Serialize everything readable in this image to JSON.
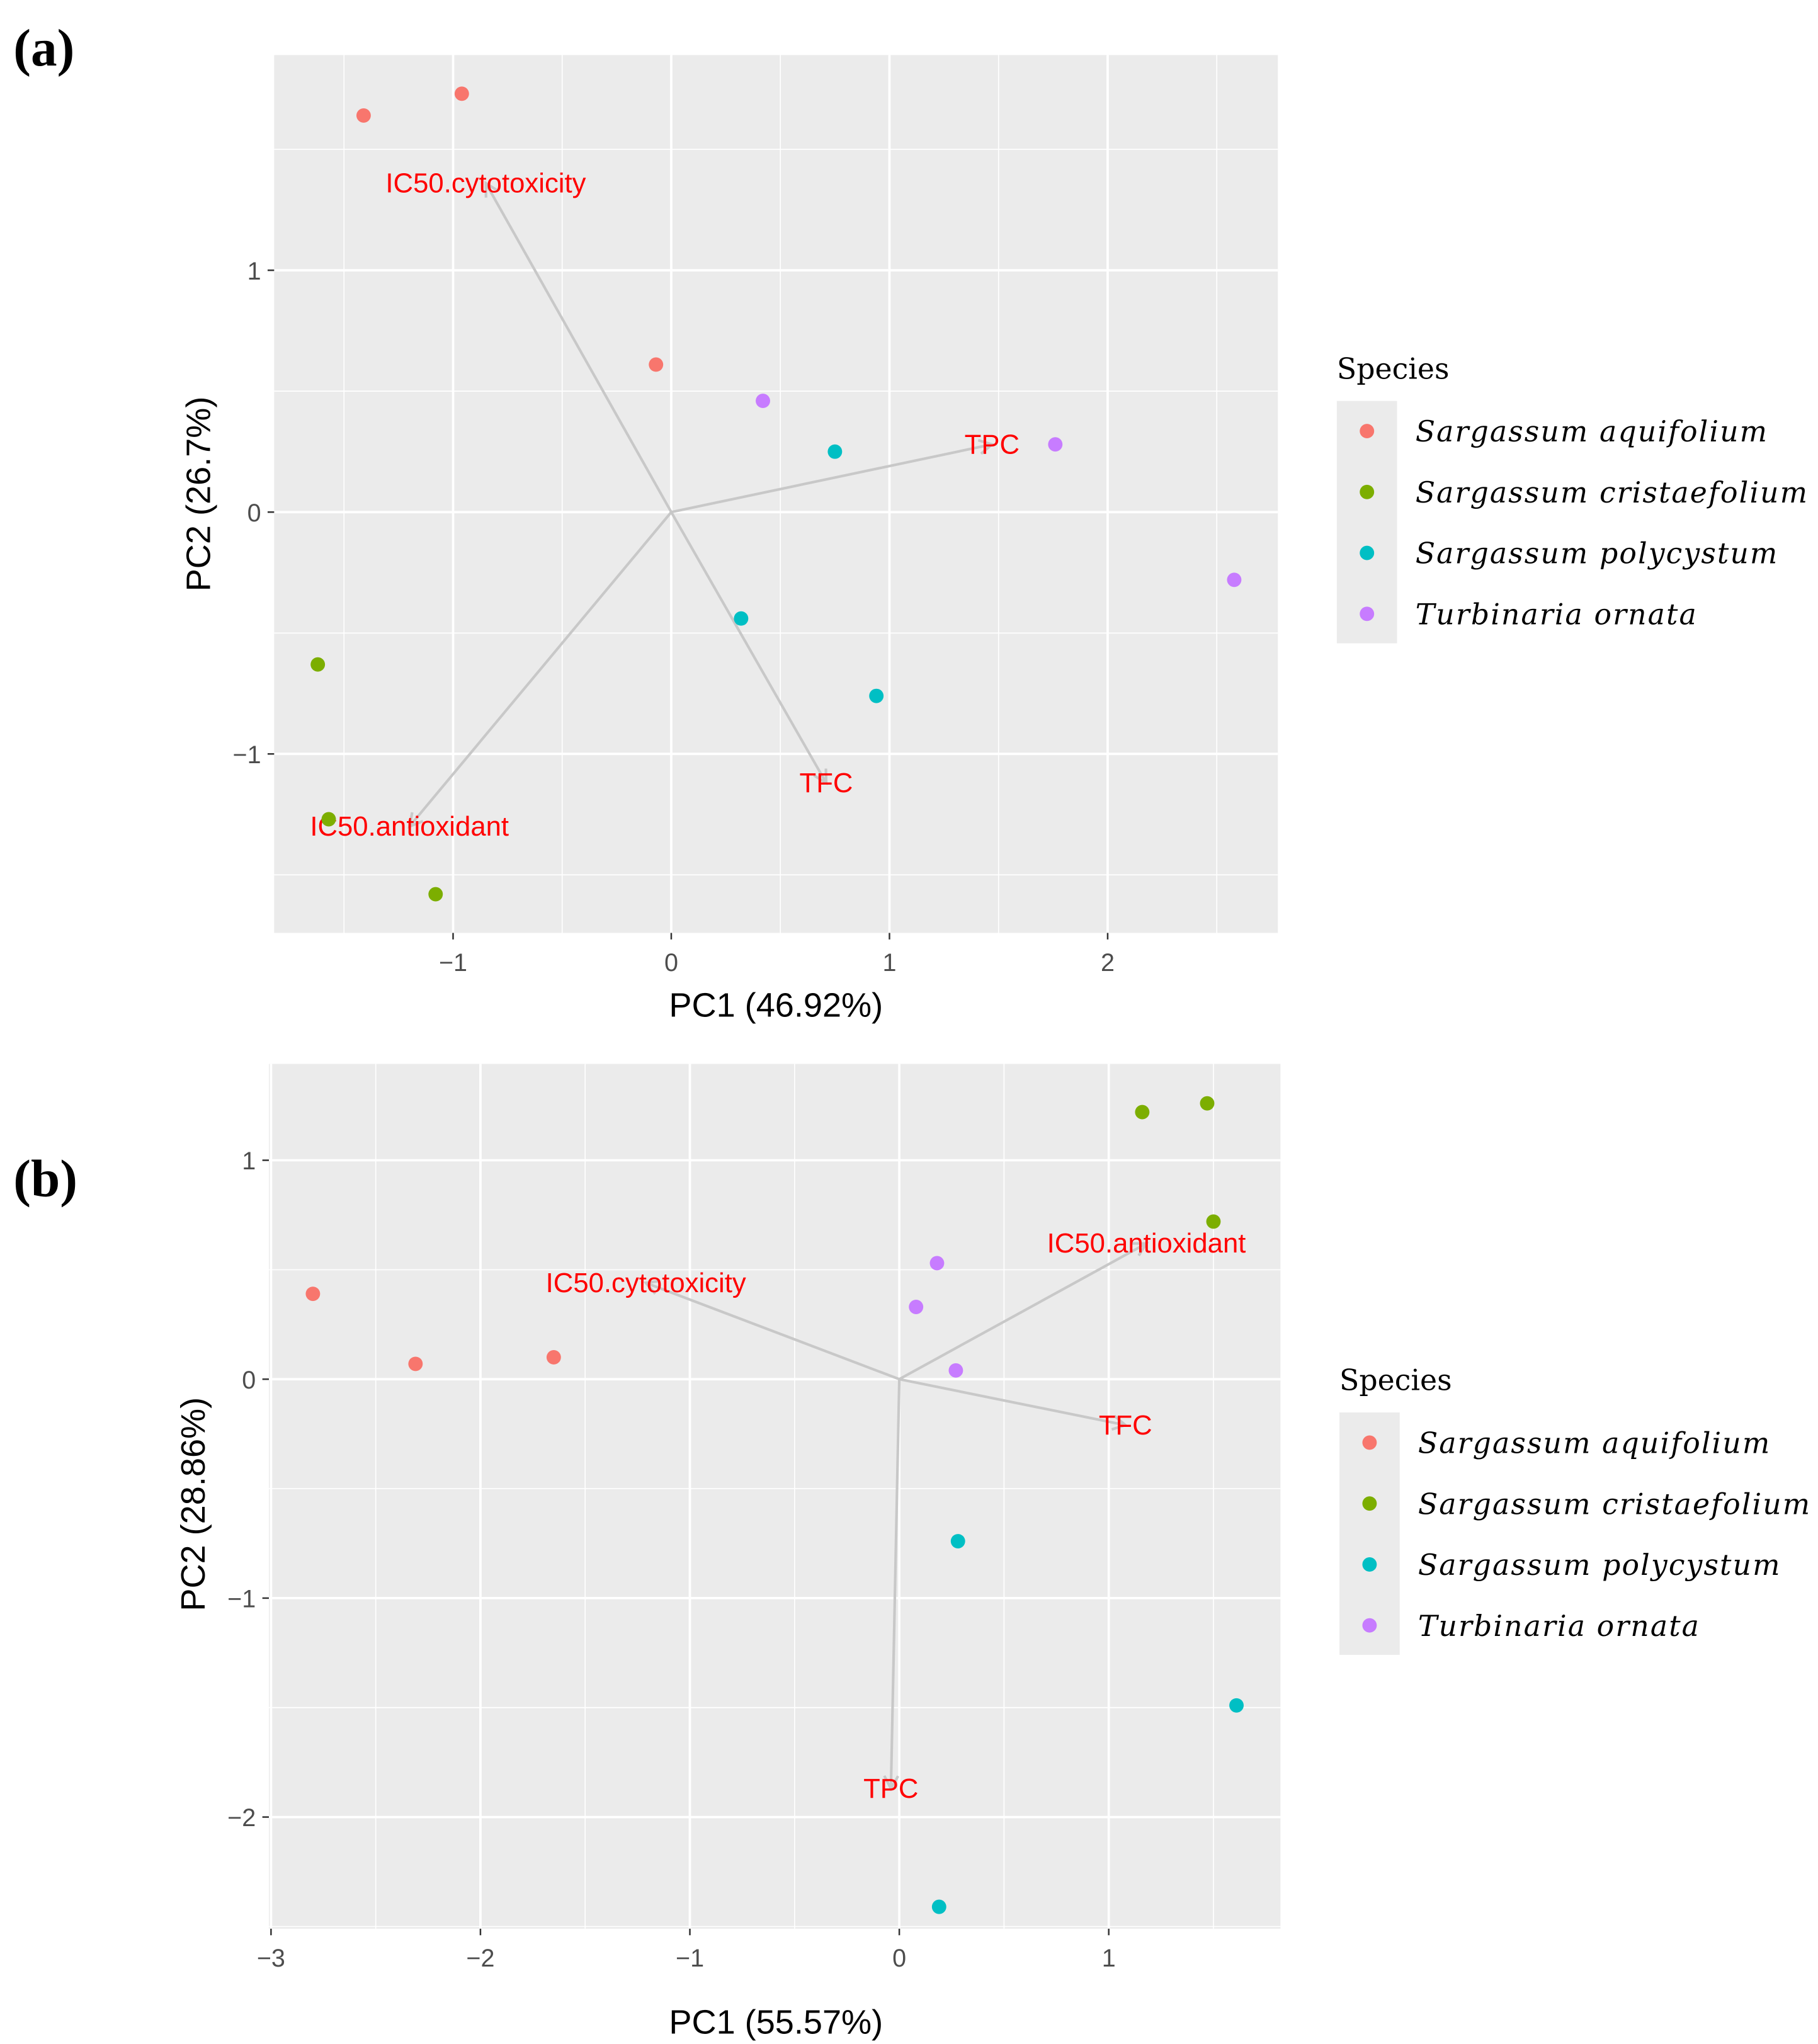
{
  "legend_title": "Species",
  "species": [
    "Sargassum aquifolium",
    "Sargassum cristaefolium",
    "Sargassum polycystum",
    "Turbinaria ornata"
  ],
  "colors": {
    "Sargassum aquifolium": "#F8766D",
    "Sargassum cristaefolium": "#7CAE00",
    "Sargassum polycystum": "#00BFC4",
    "Turbinaria ornata": "#C77CFF",
    "panel_bg": "#EBEBEB",
    "loading_arrow": "#C8C8C8",
    "loading_label": "#FF0000"
  },
  "chart_data": [
    {
      "type": "scatter",
      "panel_label": "(a)",
      "xlabel": "PC1 (46.92%)",
      "ylabel": "PC2 (26.7%)",
      "xlim": [
        -1.82,
        2.78
      ],
      "ylim": [
        -1.74,
        1.89
      ],
      "xticks": [
        -1,
        0,
        1,
        2
      ],
      "xtick_labels": [
        "−1",
        "0",
        "1",
        "2"
      ],
      "yticks": [
        -1,
        0,
        1
      ],
      "ytick_labels": [
        "−1",
        "0",
        "1"
      ],
      "grid": true,
      "legend": "right",
      "points": [
        {
          "species": "Sargassum aquifolium",
          "x": -1.41,
          "y": 1.64
        },
        {
          "species": "Sargassum aquifolium",
          "x": -0.96,
          "y": 1.73
        },
        {
          "species": "Sargassum aquifolium",
          "x": -0.07,
          "y": 0.61
        },
        {
          "species": "Sargassum cristaefolium",
          "x": -1.62,
          "y": -0.63
        },
        {
          "species": "Sargassum cristaefolium",
          "x": -1.57,
          "y": -1.27
        },
        {
          "species": "Sargassum cristaefolium",
          "x": -1.08,
          "y": -1.58
        },
        {
          "species": "Sargassum polycystum",
          "x": 0.75,
          "y": 0.25
        },
        {
          "species": "Sargassum polycystum",
          "x": 0.32,
          "y": -0.44
        },
        {
          "species": "Sargassum polycystum",
          "x": 0.94,
          "y": -0.76
        },
        {
          "species": "Turbinaria ornata",
          "x": 0.42,
          "y": 0.46
        },
        {
          "species": "Turbinaria ornata",
          "x": 1.76,
          "y": 0.28
        },
        {
          "species": "Turbinaria ornata",
          "x": 2.58,
          "y": -0.28
        }
      ],
      "loadings": [
        {
          "label": "IC50.cytotoxicity",
          "x": -0.85,
          "y": 1.36
        },
        {
          "label": "TPC",
          "x": 1.47,
          "y": 0.28
        },
        {
          "label": "TFC",
          "x": 0.71,
          "y": -1.12
        },
        {
          "label": "IC50.antioxidant",
          "x": -1.2,
          "y": -1.3
        }
      ]
    },
    {
      "type": "scatter",
      "panel_label": "(b)",
      "xlabel": "PC1 (55.57%)",
      "ylabel": "PC2 (28.86%)",
      "xlim": [
        -3.01,
        1.82
      ],
      "ylim": [
        -2.51,
        1.44
      ],
      "xticks": [
        -3,
        -2,
        -1,
        0,
        1
      ],
      "xtick_labels": [
        "−3",
        "−2",
        "−1",
        "0",
        "1"
      ],
      "yticks": [
        -2,
        -1,
        0,
        1
      ],
      "ytick_labels": [
        "−2",
        "−1",
        "0",
        "1"
      ],
      "grid": true,
      "legend": "right",
      "points": [
        {
          "species": "Sargassum aquifolium",
          "x": -2.8,
          "y": 0.39
        },
        {
          "species": "Sargassum aquifolium",
          "x": -2.31,
          "y": 0.07
        },
        {
          "species": "Sargassum aquifolium",
          "x": -1.65,
          "y": 0.1
        },
        {
          "species": "Sargassum cristaefolium",
          "x": 1.16,
          "y": 1.22
        },
        {
          "species": "Sargassum cristaefolium",
          "x": 1.47,
          "y": 1.26
        },
        {
          "species": "Sargassum cristaefolium",
          "x": 1.5,
          "y": 0.72
        },
        {
          "species": "Sargassum polycystum",
          "x": 0.28,
          "y": -0.74
        },
        {
          "species": "Sargassum polycystum",
          "x": 1.61,
          "y": -1.49
        },
        {
          "species": "Sargassum polycystum",
          "x": 0.19,
          "y": -2.41
        },
        {
          "species": "Turbinaria ornata",
          "x": 0.18,
          "y": 0.53
        },
        {
          "species": "Turbinaria ornata",
          "x": 0.08,
          "y": 0.33
        },
        {
          "species": "Turbinaria ornata",
          "x": 0.27,
          "y": 0.04
        }
      ],
      "loadings": [
        {
          "label": "IC50.cytotoxicity",
          "x": -1.21,
          "y": 0.44
        },
        {
          "label": "IC50.antioxidant",
          "x": 1.18,
          "y": 0.62
        },
        {
          "label": "TFC",
          "x": 1.08,
          "y": -0.21
        },
        {
          "label": "TPC",
          "x": -0.04,
          "y": -1.87
        }
      ]
    }
  ]
}
